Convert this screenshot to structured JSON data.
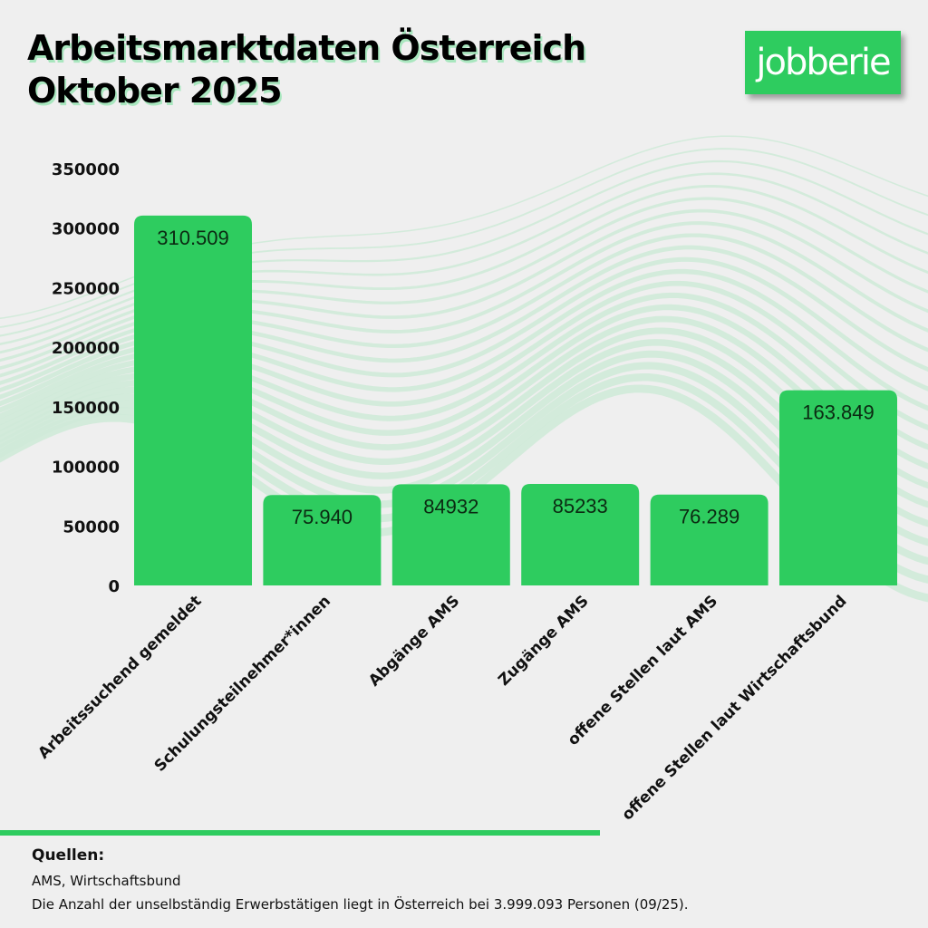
{
  "header": {
    "title_line1": "Arbeitsmarktdaten Österreich",
    "title_line2": "Oktober 2025",
    "logo_text": "jobberie"
  },
  "colors": {
    "bar": "#2ecc5f",
    "background": "#efefef",
    "wave": "#cfead8"
  },
  "chart_data": {
    "type": "bar",
    "title": "Arbeitsmarktdaten Österreich Oktober 2025",
    "xlabel": "",
    "ylabel": "",
    "ylim": [
      0,
      350000
    ],
    "yticks": [
      0,
      50000,
      100000,
      150000,
      200000,
      250000,
      300000,
      350000
    ],
    "ytick_labels": [
      "0",
      "50000",
      "100000",
      "150000",
      "200000",
      "250000",
      "300000",
      "350000"
    ],
    "grid": false,
    "legend": "none",
    "categories": [
      "Arbeitssuchend gemeldet",
      "Schulungsteilnehmer*innen",
      "Abgänge AMS",
      "Zugänge AMS",
      "offene Stellen laut AMS",
      "offene Stellen laut Wirtschaftsbund"
    ],
    "values": [
      310509,
      75940,
      84932,
      85233,
      76289,
      163849
    ],
    "value_labels": [
      "310.509",
      "75.940",
      "84932",
      "85233",
      "76.289",
      "163.849"
    ]
  },
  "footer": {
    "sources_heading": "Quellen:",
    "sources_line": "AMS, Wirtschaftsbund",
    "note": "Die Anzahl der unselbständig Erwerbstätigen liegt in Österreich  bei 3.999.093 Personen (09/25)."
  }
}
